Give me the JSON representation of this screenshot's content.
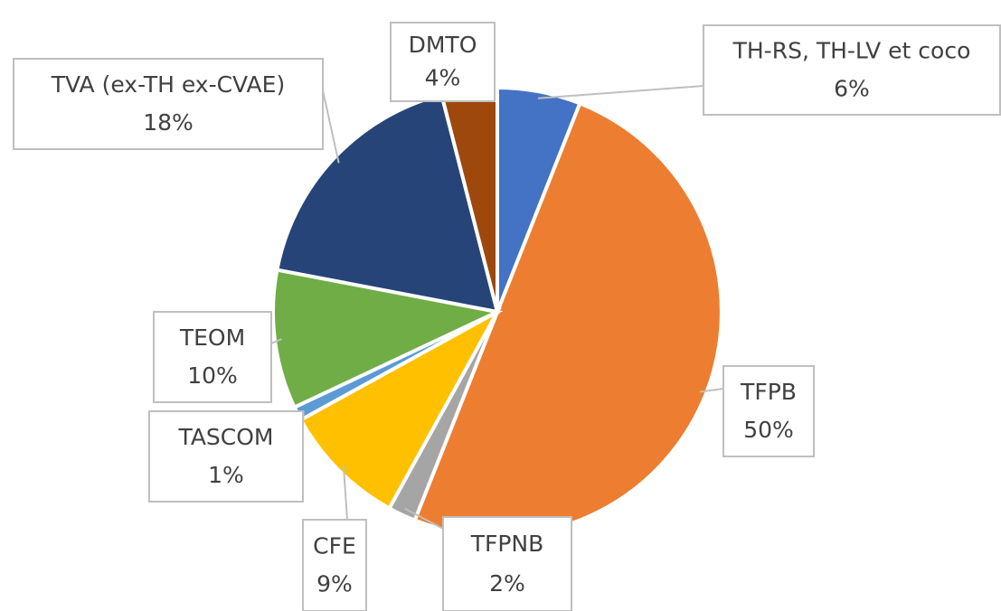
{
  "chart_data": {
    "type": "pie",
    "categories": [
      "TH-RS, TH-LV et coco",
      "TFPB",
      "TFPNB",
      "CFE",
      "TASCOM",
      "TEOM",
      "TVA (ex-TH ex-CVAE)",
      "DMTO"
    ],
    "values": [
      6,
      50,
      2,
      9,
      1,
      10,
      18,
      4
    ],
    "value_labels": [
      "6%",
      "50%",
      "2%",
      "9%",
      "1%",
      "10%",
      "18%",
      "4%"
    ],
    "colors": [
      "#4472c4",
      "#ed7d31",
      "#a5a5a5",
      "#ffc000",
      "#5b9bd5",
      "#70ad47",
      "#264478",
      "#9e480e"
    ]
  }
}
